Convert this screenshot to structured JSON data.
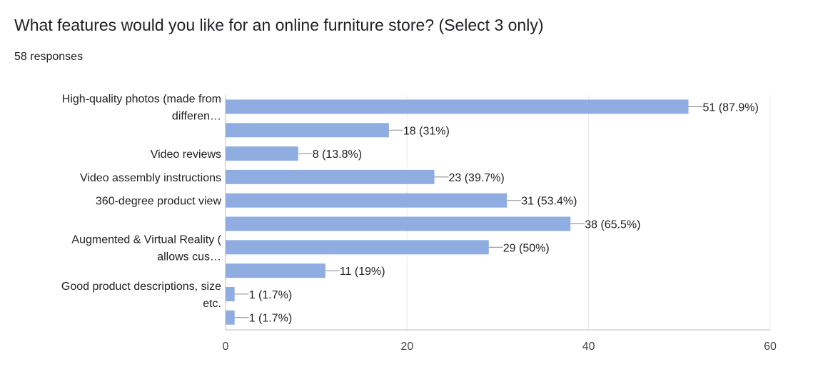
{
  "question": {
    "title": "What features would you like for an online furniture store? (Select 3 only)",
    "responses": "58 responses"
  },
  "colors": {
    "bar": "#8fade0",
    "grid": "#e8e8e8",
    "axis": "#bdbdbd",
    "leader": "#888888"
  },
  "chart_data": {
    "type": "bar",
    "orientation": "horizontal",
    "categories": [
      [
        "High-quality photos (made from",
        "differen…"
      ],
      [
        ""
      ],
      [
        "Video reviews"
      ],
      [
        "Video assembly instructions"
      ],
      [
        "360-degree product view"
      ],
      [
        ""
      ],
      [
        "Augmented & Virtual Reality (",
        "allows cus…"
      ],
      [
        ""
      ],
      [
        "Good product descriptions, size",
        "etc."
      ],
      [
        ""
      ]
    ],
    "values": [
      51,
      18,
      8,
      23,
      31,
      38,
      29,
      11,
      1,
      1
    ],
    "data_labels": [
      "51 (87.9%)",
      "18 (31%)",
      "8 (13.8%)",
      "23 (39.7%)",
      "31 (53.4%)",
      "38 (65.5%)",
      "29 (50%)",
      "11 (19%)",
      "1 (1.7%)",
      "1 (1.7%)"
    ],
    "xlim": [
      0,
      60
    ],
    "xticks": [
      0,
      20,
      40,
      60
    ],
    "grid": true
  }
}
